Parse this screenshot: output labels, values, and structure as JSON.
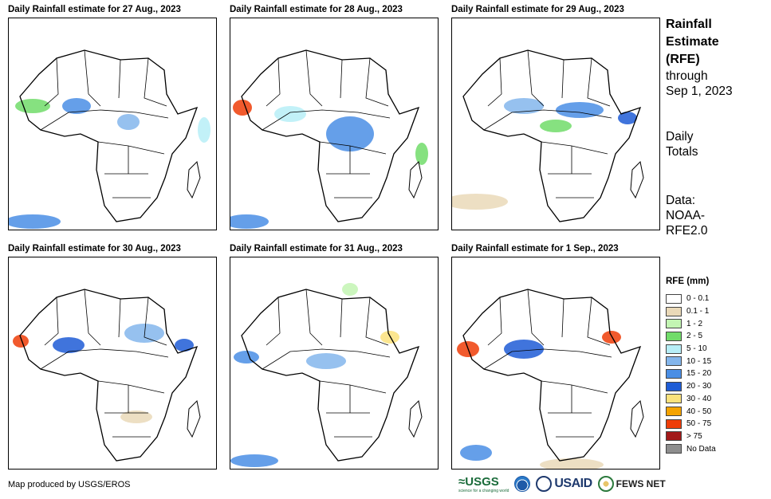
{
  "panels": [
    {
      "title": "Daily Rainfall estimate for 27 Aug., 2023"
    },
    {
      "title": "Daily Rainfall estimate for 28 Aug., 2023"
    },
    {
      "title": "Daily Rainfall estimate for 29 Aug., 2023"
    },
    {
      "title": "Daily Rainfall estimate for 30 Aug., 2023"
    },
    {
      "title": "Daily Rainfall estimate for 31 Aug., 2023"
    },
    {
      "title": "Daily Rainfall estimate for 1 Sep., 2023"
    }
  ],
  "side": {
    "title_lines": [
      "Rainfall",
      "Estimate",
      "(RFE)"
    ],
    "through_lines": [
      "through",
      "Sep 1, 2023"
    ],
    "totals_lines": [
      "Daily",
      "Totals"
    ],
    "data_lines": [
      "Data:",
      "NOAA-",
      "RFE2.0"
    ]
  },
  "legend": {
    "title": "RFE (mm)",
    "items": [
      {
        "label": "0 - 0.1",
        "color": "#ffffff"
      },
      {
        "label": "0.1 - 1",
        "color": "#ead9b8"
      },
      {
        "label": "1 - 2",
        "color": "#c3f5b3"
      },
      {
        "label": "2 - 5",
        "color": "#71dc6a"
      },
      {
        "label": "5 - 10",
        "color": "#b7eef7"
      },
      {
        "label": "10 - 15",
        "color": "#84b6ec"
      },
      {
        "label": "15 - 20",
        "color": "#4a8ee5"
      },
      {
        "label": "20 - 30",
        "color": "#1e5cd6"
      },
      {
        "label": "30 - 40",
        "color": "#fbe27c"
      },
      {
        "label": "40 - 50",
        "color": "#f5a300"
      },
      {
        "label": "50 - 75",
        "color": "#ef3d08"
      },
      {
        "label": "> 75",
        "color": "#a21919"
      },
      {
        "label": "No Data",
        "color": "#8e8e8e"
      }
    ]
  },
  "credit": "Map produced by USGS/EROS",
  "logos": {
    "usgs": "≈USGS",
    "usgs_tagline": "science for a changing world",
    "usaid": "USAID",
    "fews": "FEWS NET"
  }
}
